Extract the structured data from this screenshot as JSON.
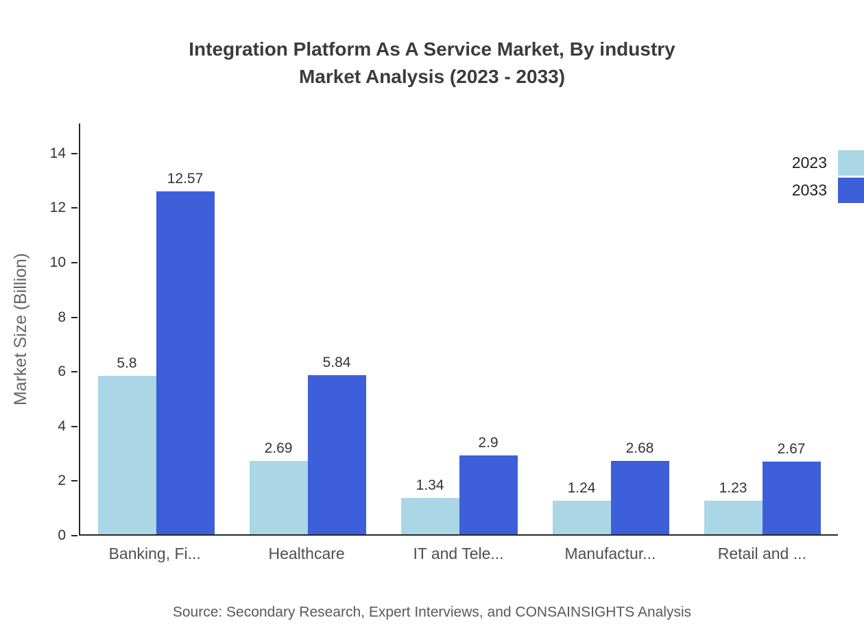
{
  "chart_data": {
    "type": "bar",
    "title": "Integration Platform As A Service Market, By industry Market Analysis (2023 - 2033)",
    "title_lines": [
      "Integration Platform As A Service Market, By industry",
      "Market Analysis (2023 - 2033)"
    ],
    "xlabel": "",
    "ylabel": "Market Size (Billion)",
    "categories": [
      "Banking, Fi...",
      "Healthcare",
      "IT and Tele...",
      "Manufactur...",
      "Retail and ..."
    ],
    "series": [
      {
        "name": "2023",
        "color": "#aad6e6",
        "values": [
          5.8,
          2.69,
          1.34,
          1.24,
          1.23
        ]
      },
      {
        "name": "2033",
        "color": "#3d5fd9",
        "values": [
          12.57,
          5.84,
          2.9,
          2.68,
          2.67
        ]
      }
    ],
    "yticks": [
      0,
      2,
      4,
      6,
      8,
      10,
      12,
      14
    ],
    "ylim": [
      0,
      15.1
    ],
    "grid": false,
    "legend_position": "top-right",
    "axis_color": "#262626"
  },
  "footer": {
    "source": "Source: Secondary Research, Expert Interviews, and CONSAINSIGHTS Analysis"
  }
}
